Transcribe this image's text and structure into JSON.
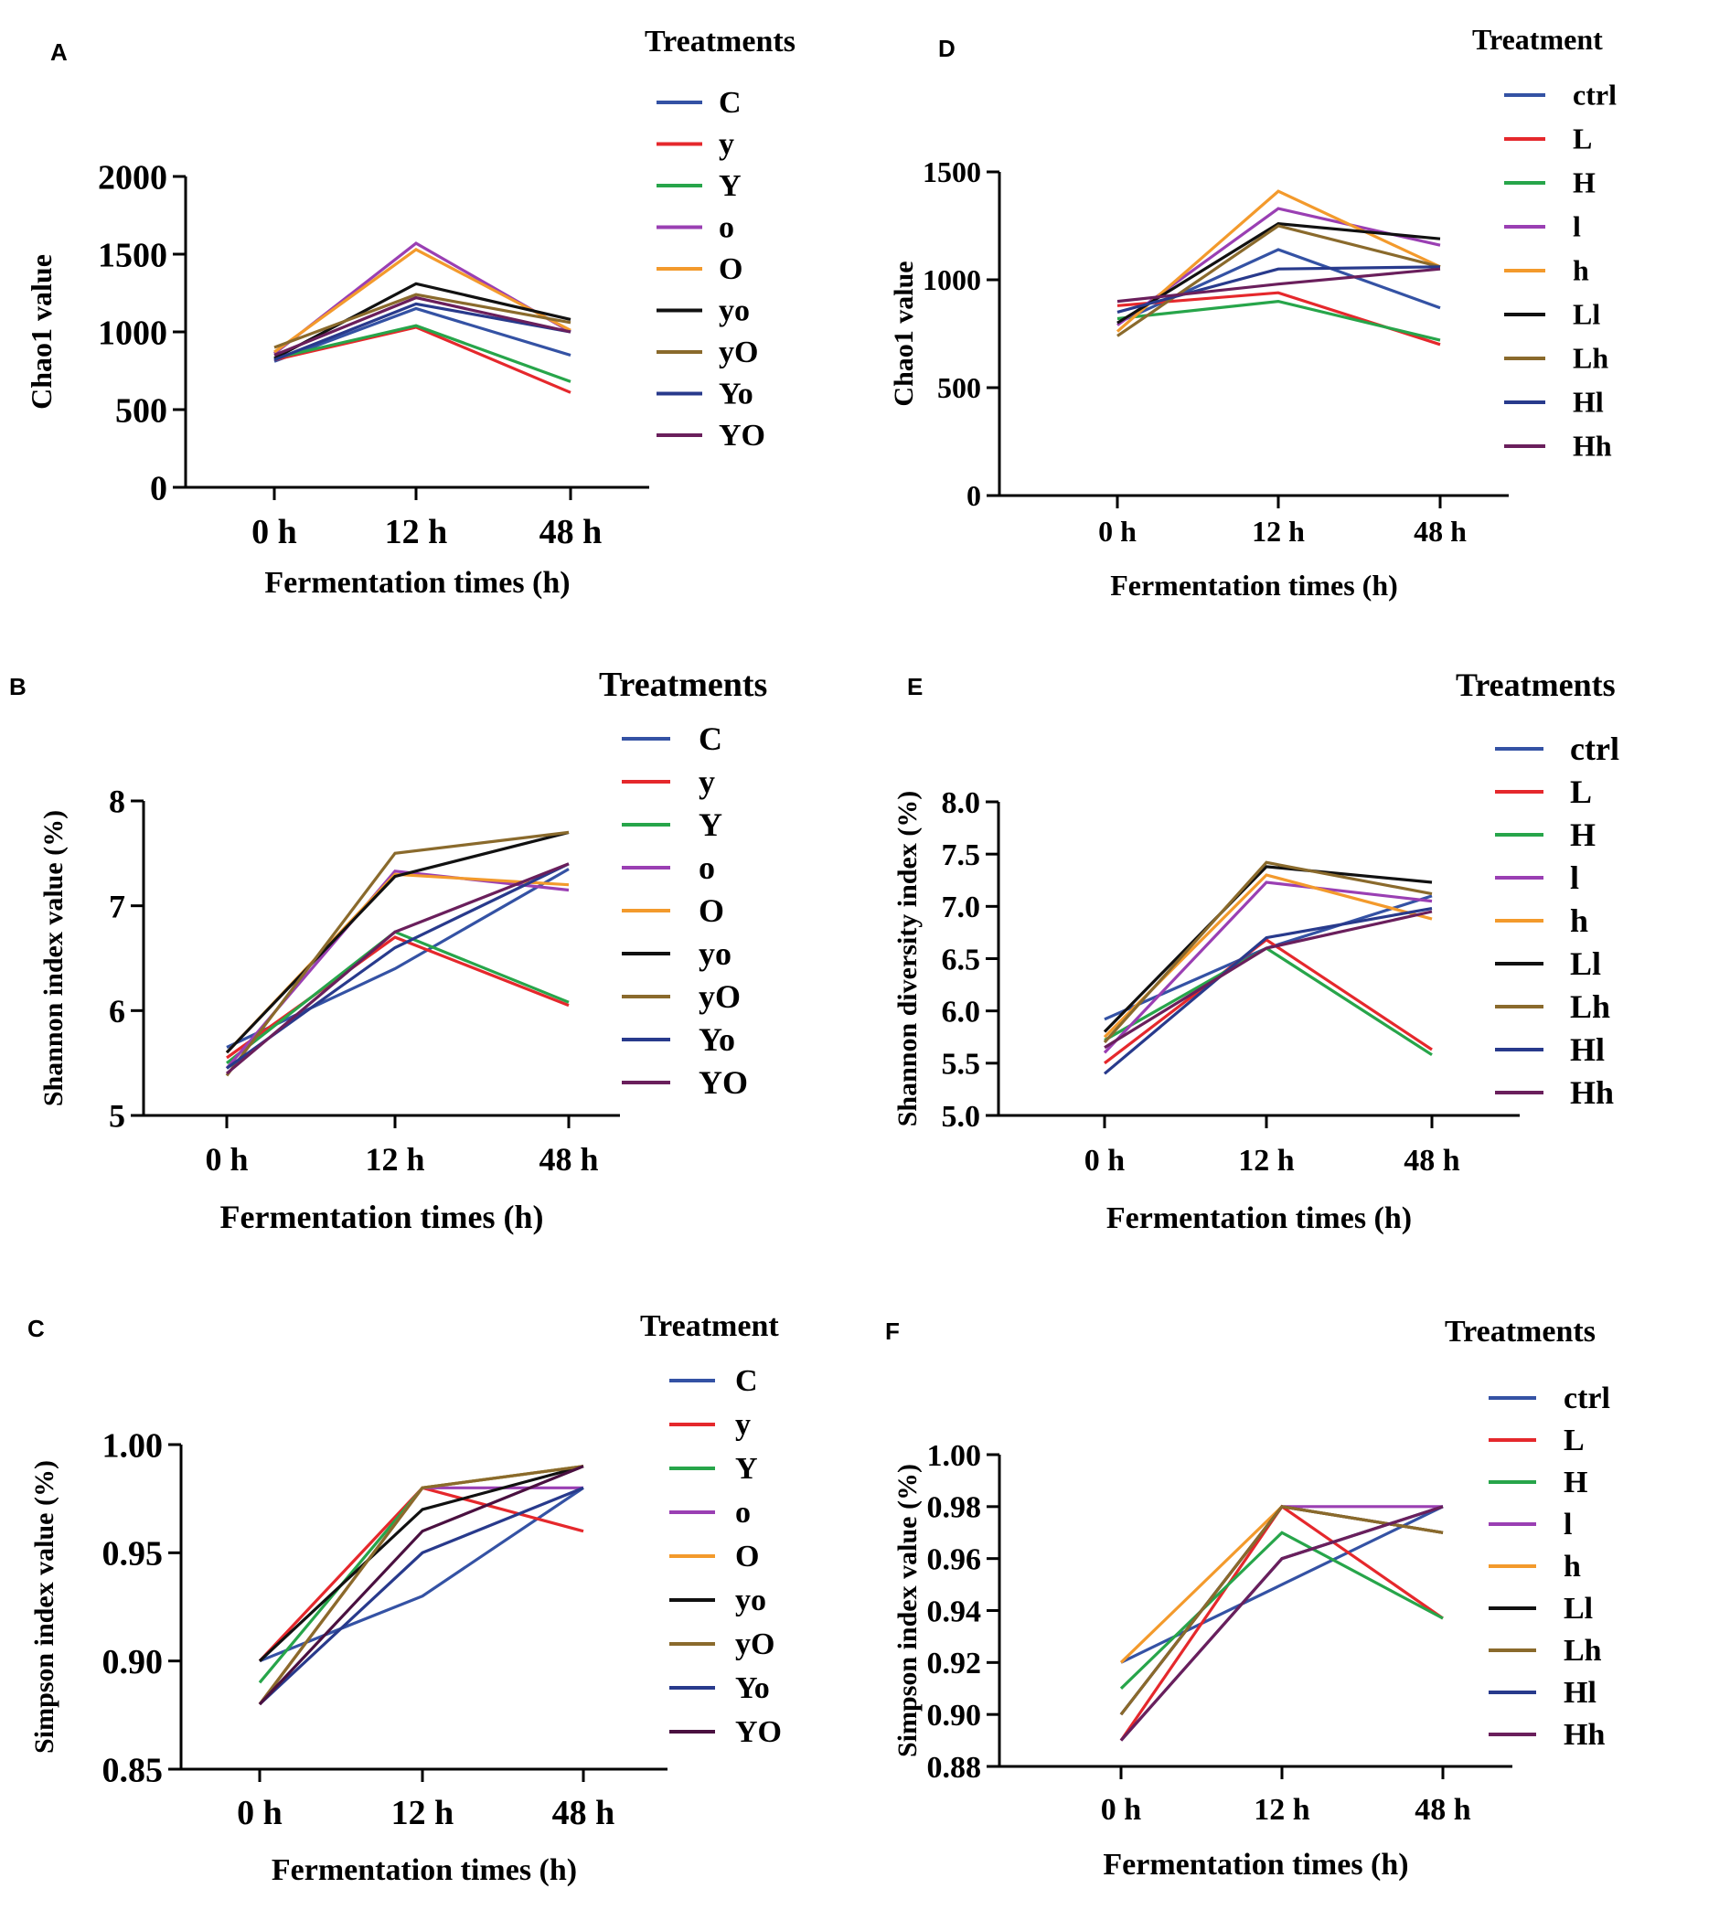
{
  "figure": {
    "panels": [
      "A",
      "B",
      "C",
      "D",
      "E",
      "F"
    ]
  },
  "chart_data": [
    {
      "panel": "A",
      "type": "line",
      "title": "",
      "xlabel": "Fermentation times (h)",
      "ylabel": "Chao1 value",
      "categories": [
        "0 h",
        "12 h",
        "48 h"
      ],
      "ylim": [
        0,
        2000
      ],
      "yticks": [
        0,
        500,
        1000,
        1500,
        2000
      ],
      "legend_title": "Treatments",
      "series": [
        {
          "name": "C",
          "color": "#3452a4",
          "values": [
            810,
            1150,
            850
          ]
        },
        {
          "name": "y",
          "color": "#e5282c",
          "values": [
            820,
            1030,
            610
          ]
        },
        {
          "name": "Y",
          "color": "#27a54a",
          "values": [
            830,
            1040,
            680
          ]
        },
        {
          "name": "o",
          "color": "#9a3fb3",
          "values": [
            860,
            1570,
            1000
          ]
        },
        {
          "name": "O",
          "color": "#f39a2c",
          "values": [
            870,
            1530,
            1010
          ]
        },
        {
          "name": "yo",
          "color": "#111111",
          "values": [
            830,
            1310,
            1080
          ]
        },
        {
          "name": "yO",
          "color": "#8a6a2c",
          "values": [
            900,
            1240,
            1060
          ]
        },
        {
          "name": "Yo",
          "color": "#283a8c",
          "values": [
            820,
            1180,
            1000
          ]
        },
        {
          "name": "YO",
          "color": "#6a1f5c",
          "values": [
            850,
            1220,
            1000
          ]
        }
      ]
    },
    {
      "panel": "B",
      "type": "line",
      "title": "",
      "xlabel": "Fermentation times (h)",
      "ylabel": "Shannon index value (%)",
      "categories": [
        "0 h",
        "12 h",
        "48 h"
      ],
      "ylim": [
        5,
        8
      ],
      "yticks": [
        5,
        6,
        7,
        8
      ],
      "legend_title": "Treatments",
      "series": [
        {
          "name": "C",
          "color": "#3452a4",
          "values": [
            5.65,
            6.4,
            7.35
          ]
        },
        {
          "name": "y",
          "color": "#e5282c",
          "values": [
            5.55,
            6.7,
            6.05
          ]
        },
        {
          "name": "Y",
          "color": "#27a54a",
          "values": [
            5.5,
            6.75,
            6.08
          ]
        },
        {
          "name": "o",
          "color": "#9a3fb3",
          "values": [
            5.45,
            7.33,
            7.15
          ]
        },
        {
          "name": "O",
          "color": "#f39a2c",
          "values": [
            5.6,
            7.3,
            7.2
          ]
        },
        {
          "name": "yo",
          "color": "#111111",
          "values": [
            5.6,
            7.28,
            7.7
          ]
        },
        {
          "name": "yO",
          "color": "#8a6a2c",
          "values": [
            5.38,
            7.5,
            7.7
          ]
        },
        {
          "name": "Yo",
          "color": "#283a8c",
          "values": [
            5.45,
            6.6,
            7.4
          ]
        },
        {
          "name": "YO",
          "color": "#6a1f5c",
          "values": [
            5.4,
            6.75,
            7.4
          ]
        }
      ]
    },
    {
      "panel": "C",
      "type": "line",
      "title": "",
      "xlabel": "Fermentation times (h)",
      "ylabel": "Simpson index value (%)",
      "categories": [
        "0 h",
        "12 h",
        "48 h"
      ],
      "ylim": [
        0.85,
        1.0
      ],
      "yticks": [
        "0.85",
        "0.90",
        "0.95",
        "1.00"
      ],
      "legend_title": "Treatment",
      "series": [
        {
          "name": "C",
          "color": "#3452a4",
          "values": [
            0.9,
            0.93,
            0.98
          ]
        },
        {
          "name": "y",
          "color": "#e5282c",
          "values": [
            0.9,
            0.98,
            0.96
          ]
        },
        {
          "name": "Y",
          "color": "#27a54a",
          "values": [
            0.89,
            0.98,
            0.99
          ]
        },
        {
          "name": "o",
          "color": "#9a3fb3",
          "values": [
            0.88,
            0.98,
            0.98
          ]
        },
        {
          "name": "O",
          "color": "#f39a2c",
          "values": [
            0.88,
            0.98,
            0.99
          ]
        },
        {
          "name": "yo",
          "color": "#111111",
          "values": [
            0.9,
            0.97,
            0.99
          ]
        },
        {
          "name": "yO",
          "color": "#8a6a2c",
          "values": [
            0.88,
            0.98,
            0.99
          ]
        },
        {
          "name": "Yo",
          "color": "#283a8c",
          "values": [
            0.88,
            0.95,
            0.98
          ]
        },
        {
          "name": "YO",
          "color": "#4a1040",
          "values": [
            0.88,
            0.96,
            0.99
          ]
        }
      ]
    },
    {
      "panel": "D",
      "type": "line",
      "title": "",
      "xlabel": "Fermentation times (h)",
      "ylabel": "Chao1 value",
      "categories": [
        "0 h",
        "12 h",
        "48 h"
      ],
      "ylim": [
        0,
        1500
      ],
      "yticks": [
        0,
        500,
        1000,
        1500
      ],
      "legend_title": "Treatment",
      "series": [
        {
          "name": "ctrl",
          "color": "#3452a4",
          "values": [
            800,
            1140,
            870
          ]
        },
        {
          "name": "L",
          "color": "#e5282c",
          "values": [
            880,
            940,
            700
          ]
        },
        {
          "name": "H",
          "color": "#27a54a",
          "values": [
            820,
            900,
            720
          ]
        },
        {
          "name": "l",
          "color": "#9a3fb3",
          "values": [
            790,
            1330,
            1160
          ]
        },
        {
          "name": "h",
          "color": "#f39a2c",
          "values": [
            760,
            1410,
            1060
          ]
        },
        {
          "name": "Ll",
          "color": "#111111",
          "values": [
            800,
            1260,
            1190
          ]
        },
        {
          "name": "Lh",
          "color": "#8a6a2c",
          "values": [
            740,
            1250,
            1060
          ]
        },
        {
          "name": "Hl",
          "color": "#283a8c",
          "values": [
            850,
            1050,
            1060
          ]
        },
        {
          "name": "Hh",
          "color": "#6a1f5c",
          "values": [
            900,
            980,
            1050
          ]
        }
      ]
    },
    {
      "panel": "E",
      "type": "line",
      "title": "",
      "xlabel": "Fermentation times (h)",
      "ylabel": "Shannon diversity index (%)",
      "categories": [
        "0 h",
        "12 h",
        "48 h"
      ],
      "ylim": [
        5.0,
        8.0
      ],
      "yticks": [
        "5.0",
        "5.5",
        "6.0",
        "6.5",
        "7.0",
        "7.5",
        "8.0"
      ],
      "legend_title": "Treatments",
      "series": [
        {
          "name": "ctrl",
          "color": "#3452a4",
          "values": [
            5.92,
            6.6,
            7.1
          ]
        },
        {
          "name": "L",
          "color": "#e5282c",
          "values": [
            5.5,
            6.68,
            5.63
          ]
        },
        {
          "name": "H",
          "color": "#27a54a",
          "values": [
            5.72,
            6.6,
            5.58
          ]
        },
        {
          "name": "l",
          "color": "#9a3fb3",
          "values": [
            5.6,
            7.23,
            7.05
          ]
        },
        {
          "name": "h",
          "color": "#f39a2c",
          "values": [
            5.75,
            7.3,
            6.88
          ]
        },
        {
          "name": "Ll",
          "color": "#111111",
          "values": [
            5.8,
            7.38,
            7.23
          ]
        },
        {
          "name": "Lh",
          "color": "#8a6a2c",
          "values": [
            5.7,
            7.42,
            7.12
          ]
        },
        {
          "name": "Hl",
          "color": "#283a8c",
          "values": [
            5.4,
            6.7,
            6.98
          ]
        },
        {
          "name": "Hh",
          "color": "#6a1f5c",
          "values": [
            5.65,
            6.6,
            6.95
          ]
        }
      ]
    },
    {
      "panel": "F",
      "type": "line",
      "title": "",
      "xlabel": "Fermentation times (h)",
      "ylabel": "Simpson index value (%)",
      "categories": [
        "0 h",
        "12 h",
        "48 h"
      ],
      "ylim": [
        0.88,
        1.0
      ],
      "yticks": [
        "0.88",
        "0.90",
        "0.92",
        "0.94",
        "0.96",
        "0.98",
        "1.00"
      ],
      "legend_title": "Treatments",
      "series": [
        {
          "name": "ctrl",
          "color": "#3452a4",
          "values": [
            0.92,
            0.95,
            0.98
          ]
        },
        {
          "name": "L",
          "color": "#e5282c",
          "values": [
            0.89,
            0.98,
            0.937
          ]
        },
        {
          "name": "H",
          "color": "#27a54a",
          "values": [
            0.91,
            0.97,
            0.937
          ]
        },
        {
          "name": "l",
          "color": "#9a3fb3",
          "values": [
            0.9,
            0.98,
            0.98
          ]
        },
        {
          "name": "h",
          "color": "#f39a2c",
          "values": [
            0.92,
            0.98,
            0.97
          ]
        },
        {
          "name": "Ll",
          "color": "#111111",
          "values": [
            0.9,
            0.98,
            0.97
          ]
        },
        {
          "name": "Lh",
          "color": "#8a6a2c",
          "values": [
            0.9,
            0.98,
            0.97
          ]
        },
        {
          "name": "Hl",
          "color": "#283a8c",
          "values": [
            0.89,
            0.96,
            0.98
          ]
        },
        {
          "name": "Hh",
          "color": "#6a1f5c",
          "values": [
            0.89,
            0.96,
            0.98
          ]
        }
      ]
    }
  ]
}
